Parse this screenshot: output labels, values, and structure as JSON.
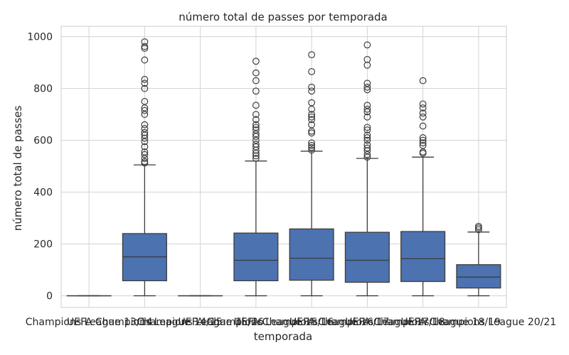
{
  "chart_data": {
    "type": "box",
    "title": "número total de passes por temporada",
    "xlabel": "temporada",
    "ylabel": "número total de passes",
    "ylim": [
      -45,
      1040
    ],
    "yticks": [
      0,
      200,
      400,
      600,
      800,
      1000
    ],
    "grid": true,
    "colors": {
      "box_fill": "#4c72b0",
      "line": "#3d3d3d",
      "grid": "#d3d3d3",
      "frame": "#cccccc"
    },
    "categories": [
      "Champions League 13/14",
      "UEFA Champions League 14/15",
      "Champions League 15/16",
      "UEFA Champions League 15/16",
      "UEFA Champions League 16/17",
      "UEFA Champions League 17/18",
      "UEFA Champions League 18/19",
      "UEFA Champions League 20/21"
    ],
    "boxes": [
      {
        "min": 0,
        "q1": 0,
        "median": 0,
        "q3": 0,
        "max": 0,
        "outliers": []
      },
      {
        "min": 0,
        "q1": 58,
        "median": 150,
        "q3": 240,
        "max": 505,
        "outliers": [
          512,
          518,
          530,
          545,
          555,
          575,
          595,
          608,
          620,
          630,
          645,
          660,
          700,
          715,
          725,
          750,
          800,
          820,
          835,
          910,
          955,
          962,
          980
        ]
      },
      {
        "min": 0,
        "q1": 0,
        "median": 0,
        "q3": 0,
        "max": 0,
        "outliers": []
      },
      {
        "min": 0,
        "q1": 58,
        "median": 137,
        "q3": 242,
        "max": 520,
        "outliers": [
          530,
          540,
          550,
          562,
          575,
          585,
          600,
          615,
          625,
          640,
          650,
          660,
          680,
          700,
          735,
          790,
          830,
          860,
          905
        ]
      },
      {
        "min": 0,
        "q1": 60,
        "median": 145,
        "q3": 258,
        "max": 558,
        "outliers": [
          562,
          572,
          580,
          590,
          628,
          635,
          660,
          680,
          690,
          700,
          720,
          745,
          790,
          805,
          865,
          930
        ]
      },
      {
        "min": 0,
        "q1": 52,
        "median": 137,
        "q3": 245,
        "max": 530,
        "outliers": [
          535,
          545,
          560,
          570,
          582,
          600,
          610,
          620,
          640,
          650,
          690,
          710,
          720,
          735,
          795,
          805,
          820,
          890,
          912,
          968
        ]
      },
      {
        "min": 0,
        "q1": 55,
        "median": 143,
        "q3": 248,
        "max": 535,
        "outliers": [
          550,
          555,
          580,
          590,
          600,
          610,
          655,
          690,
          705,
          725,
          740,
          830
        ]
      },
      {
        "min": 0,
        "q1": 30,
        "median": 72,
        "q3": 120,
        "max": 246,
        "outliers": [
          255,
          262,
          268
        ]
      }
    ]
  }
}
